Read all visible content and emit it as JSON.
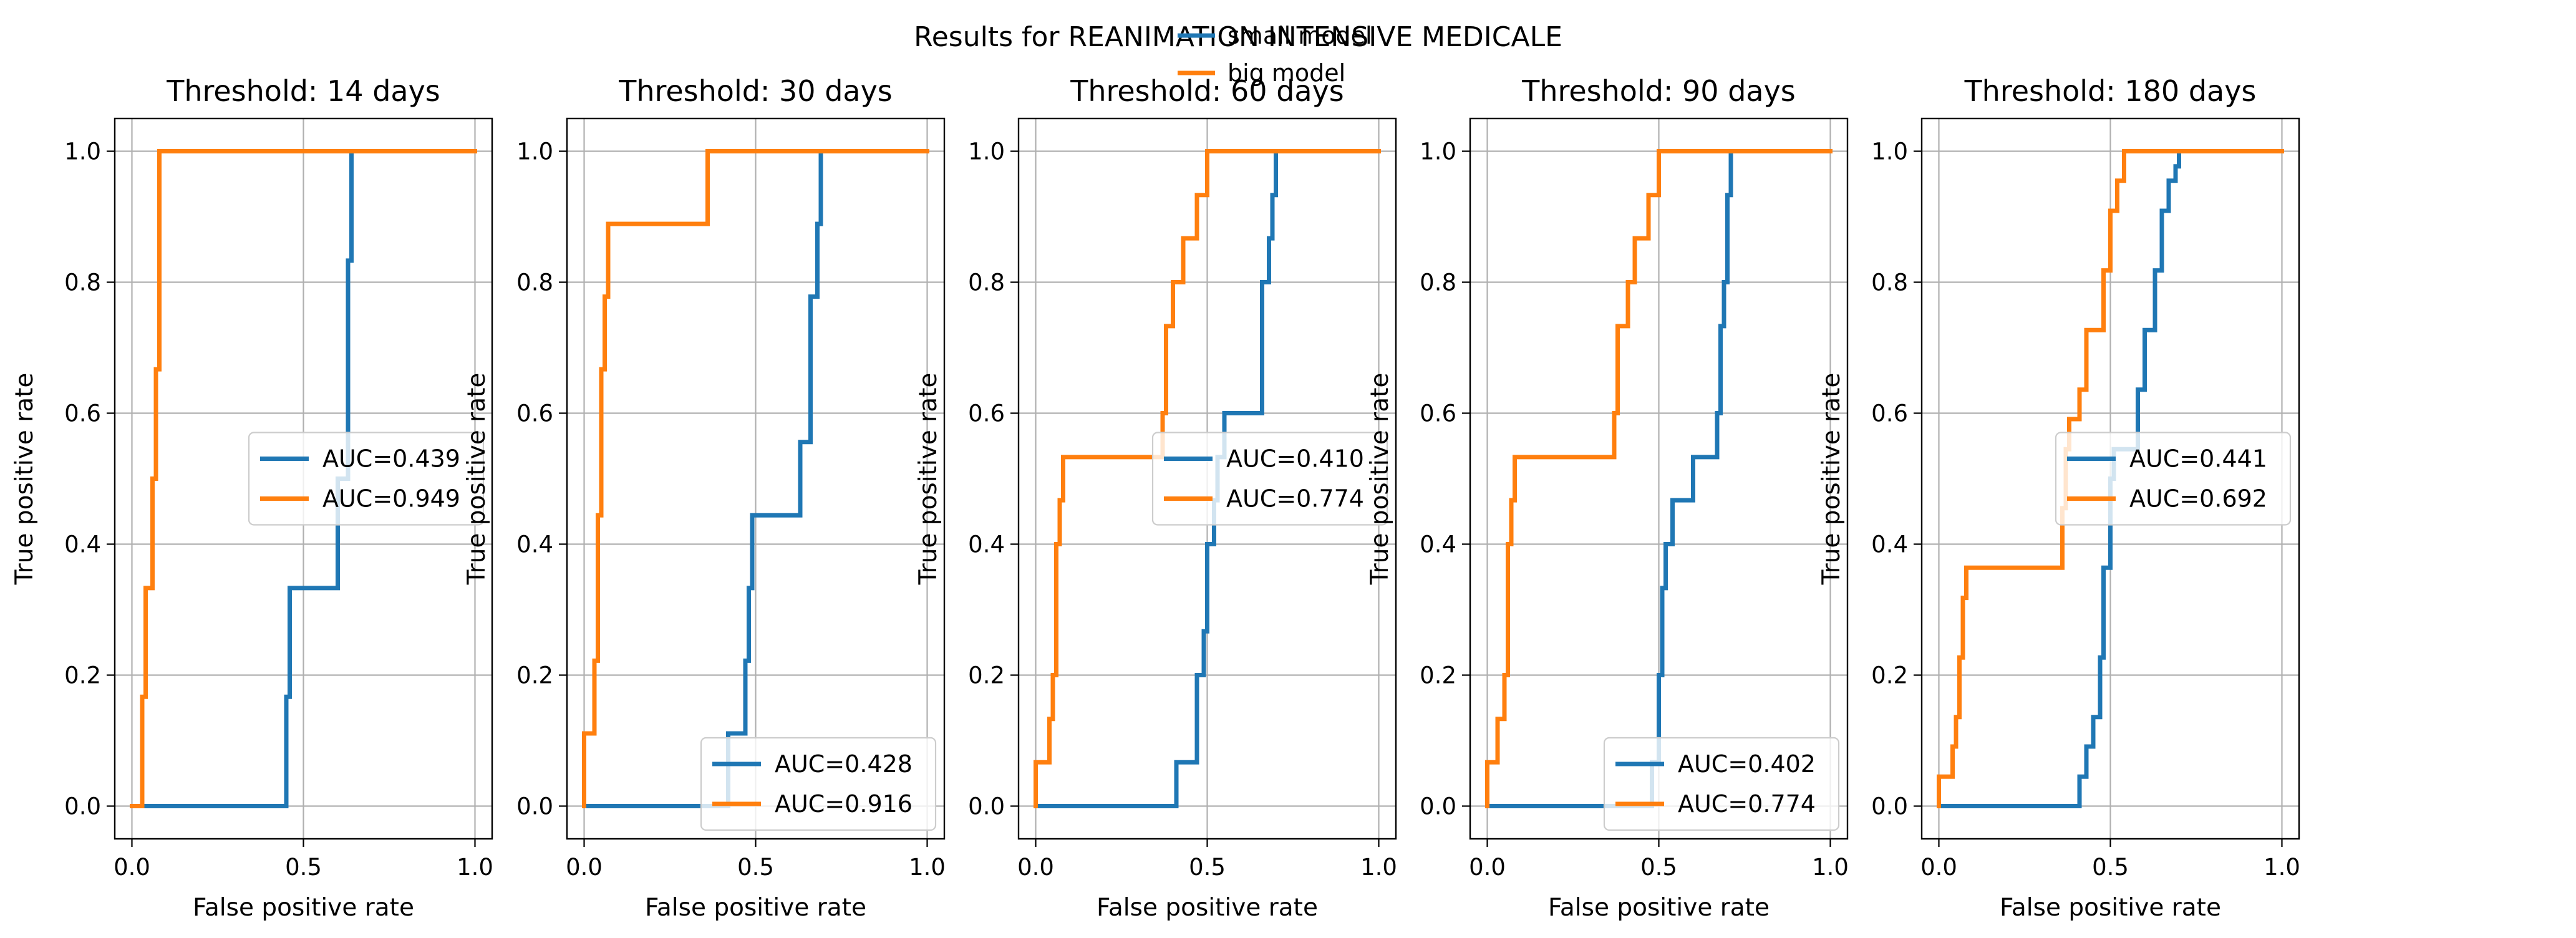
{
  "figure": {
    "suptitle": "Results for REANIMATION INTENSIVE MEDICALE",
    "legend": {
      "placement": "top-right",
      "entries": [
        {
          "label": "small model",
          "color": "#1f77b4"
        },
        {
          "label": "big model",
          "color": "#ff7f0e"
        }
      ]
    }
  },
  "chart_data": [
    {
      "type": "line",
      "title": "Threshold: 14 days",
      "xlabel": "False positive rate",
      "ylabel": "True positive rate",
      "xlim": [
        -0.05,
        1.05
      ],
      "ylim": [
        -0.05,
        1.05
      ],
      "xticks": [
        0.0,
        0.5,
        1.0
      ],
      "xtick_labels": [
        "0.0",
        "0.5",
        "1.0"
      ],
      "yticks": [
        0.0,
        0.2,
        0.4,
        0.6,
        0.8,
        1.0
      ],
      "ytick_labels": [
        "0.0",
        "0.2",
        "0.4",
        "0.6",
        "0.8",
        "1.0"
      ],
      "grid": true,
      "legend_placement": "center-right",
      "series": [
        {
          "color": "#1f77b4",
          "auc_label": "AUC=0.439",
          "x": [
            0.0,
            0.45,
            0.45,
            0.46,
            0.46,
            0.6,
            0.6,
            0.63,
            0.63,
            0.63,
            0.64,
            0.64,
            1.0
          ],
          "y": [
            0.0,
            0.0,
            0.167,
            0.167,
            0.333,
            0.333,
            0.5,
            0.5,
            0.667,
            0.833,
            0.833,
            1.0,
            1.0
          ]
        },
        {
          "color": "#ff7f0e",
          "auc_label": "AUC=0.949",
          "x": [
            0.0,
            0.03,
            0.03,
            0.04,
            0.04,
            0.06,
            0.06,
            0.07,
            0.07,
            0.08,
            0.08,
            0.08,
            1.0
          ],
          "y": [
            0.0,
            0.0,
            0.167,
            0.167,
            0.333,
            0.333,
            0.5,
            0.5,
            0.667,
            0.667,
            0.833,
            1.0,
            1.0
          ]
        }
      ]
    },
    {
      "type": "line",
      "title": "Threshold: 30 days",
      "xlabel": "False positive rate",
      "ylabel": "True positive rate",
      "xlim": [
        -0.05,
        1.05
      ],
      "ylim": [
        -0.05,
        1.05
      ],
      "xticks": [
        0.0,
        0.5,
        1.0
      ],
      "xtick_labels": [
        "0.0",
        "0.5",
        "1.0"
      ],
      "yticks": [
        0.0,
        0.2,
        0.4,
        0.6,
        0.8,
        1.0
      ],
      "ytick_labels": [
        "0.0",
        "0.2",
        "0.4",
        "0.6",
        "0.8",
        "1.0"
      ],
      "grid": true,
      "legend_placement": "lower-right",
      "series": [
        {
          "color": "#1f77b4",
          "auc_label": "AUC=0.428",
          "x": [
            0.0,
            0.42,
            0.42,
            0.47,
            0.47,
            0.48,
            0.48,
            0.49,
            0.49,
            0.5,
            0.5,
            0.63,
            0.63,
            0.66,
            0.66,
            0.68,
            0.68,
            0.69,
            0.69,
            1.0
          ],
          "y": [
            0.0,
            0.0,
            0.111,
            0.111,
            0.222,
            0.222,
            0.333,
            0.333,
            0.444,
            0.444,
            0.444,
            0.444,
            0.556,
            0.556,
            0.778,
            0.778,
            0.889,
            0.889,
            1.0,
            1.0
          ]
        },
        {
          "color": "#ff7f0e",
          "auc_label": "AUC=0.916",
          "x": [
            0.0,
            0.0,
            0.03,
            0.03,
            0.04,
            0.04,
            0.05,
            0.05,
            0.06,
            0.06,
            0.07,
            0.07,
            0.36,
            0.36,
            1.0
          ],
          "y": [
            0.0,
            0.111,
            0.111,
            0.222,
            0.222,
            0.444,
            0.444,
            0.667,
            0.667,
            0.778,
            0.778,
            0.889,
            0.889,
            1.0,
            1.0
          ]
        }
      ]
    },
    {
      "type": "line",
      "title": "Threshold: 60 days",
      "xlabel": "False positive rate",
      "ylabel": "True positive rate",
      "xlim": [
        -0.05,
        1.05
      ],
      "ylim": [
        -0.05,
        1.05
      ],
      "xticks": [
        0.0,
        0.5,
        1.0
      ],
      "xtick_labels": [
        "0.0",
        "0.5",
        "1.0"
      ],
      "yticks": [
        0.0,
        0.2,
        0.4,
        0.6,
        0.8,
        1.0
      ],
      "ytick_labels": [
        "0.0",
        "0.2",
        "0.4",
        "0.6",
        "0.8",
        "1.0"
      ],
      "grid": true,
      "legend_placement": "center-right",
      "series": [
        {
          "color": "#1f77b4",
          "auc_label": "AUC=0.410",
          "x": [
            0.0,
            0.41,
            0.41,
            0.47,
            0.47,
            0.49,
            0.49,
            0.5,
            0.5,
            0.52,
            0.52,
            0.53,
            0.53,
            0.55,
            0.55,
            0.66,
            0.66,
            0.68,
            0.68,
            0.69,
            0.69,
            0.7,
            0.7,
            1.0
          ],
          "y": [
            0.0,
            0.0,
            0.067,
            0.067,
            0.2,
            0.2,
            0.267,
            0.267,
            0.4,
            0.4,
            0.467,
            0.467,
            0.533,
            0.533,
            0.6,
            0.6,
            0.8,
            0.8,
            0.867,
            0.867,
            0.933,
            0.933,
            1.0,
            1.0
          ]
        },
        {
          "color": "#ff7f0e",
          "auc_label": "AUC=0.774",
          "x": [
            0.0,
            0.0,
            0.04,
            0.04,
            0.05,
            0.05,
            0.06,
            0.06,
            0.07,
            0.07,
            0.08,
            0.08,
            0.37,
            0.37,
            0.38,
            0.38,
            0.4,
            0.4,
            0.43,
            0.43,
            0.47,
            0.47,
            0.5,
            0.5,
            1.0
          ],
          "y": [
            0.0,
            0.067,
            0.067,
            0.133,
            0.133,
            0.2,
            0.2,
            0.4,
            0.4,
            0.467,
            0.467,
            0.533,
            0.533,
            0.6,
            0.6,
            0.733,
            0.733,
            0.8,
            0.8,
            0.867,
            0.867,
            0.933,
            0.933,
            1.0,
            1.0
          ]
        }
      ]
    },
    {
      "type": "line",
      "title": "Threshold: 90 days",
      "xlabel": "False positive rate",
      "ylabel": "True positive rate",
      "xlim": [
        -0.05,
        1.05
      ],
      "ylim": [
        -0.05,
        1.05
      ],
      "xticks": [
        0.0,
        0.5,
        1.0
      ],
      "xtick_labels": [
        "0.0",
        "0.5",
        "1.0"
      ],
      "yticks": [
        0.0,
        0.2,
        0.4,
        0.6,
        0.8,
        1.0
      ],
      "ytick_labels": [
        "0.0",
        "0.2",
        "0.4",
        "0.6",
        "0.8",
        "1.0"
      ],
      "grid": true,
      "legend_placement": "lower-right",
      "series": [
        {
          "color": "#1f77b4",
          "auc_label": "AUC=0.402",
          "x": [
            0.0,
            0.48,
            0.48,
            0.5,
            0.5,
            0.51,
            0.51,
            0.52,
            0.52,
            0.54,
            0.54,
            0.6,
            0.6,
            0.67,
            0.67,
            0.68,
            0.68,
            0.69,
            0.69,
            0.7,
            0.7,
            0.71,
            0.71,
            1.0
          ],
          "y": [
            0.0,
            0.0,
            0.067,
            0.067,
            0.2,
            0.2,
            0.333,
            0.333,
            0.4,
            0.4,
            0.467,
            0.467,
            0.533,
            0.533,
            0.6,
            0.6,
            0.733,
            0.733,
            0.8,
            0.8,
            0.933,
            0.933,
            1.0,
            1.0
          ]
        },
        {
          "color": "#ff7f0e",
          "auc_label": "AUC=0.774",
          "x": [
            0.0,
            0.0,
            0.03,
            0.03,
            0.05,
            0.05,
            0.06,
            0.06,
            0.07,
            0.07,
            0.08,
            0.08,
            0.37,
            0.37,
            0.38,
            0.38,
            0.41,
            0.41,
            0.43,
            0.43,
            0.47,
            0.47,
            0.5,
            0.5,
            1.0
          ],
          "y": [
            0.0,
            0.067,
            0.067,
            0.133,
            0.133,
            0.2,
            0.2,
            0.4,
            0.4,
            0.467,
            0.467,
            0.533,
            0.533,
            0.6,
            0.6,
            0.733,
            0.733,
            0.8,
            0.8,
            0.867,
            0.867,
            0.933,
            0.933,
            1.0,
            1.0
          ]
        }
      ]
    },
    {
      "type": "line",
      "title": "Threshold: 180 days",
      "xlabel": "False positive rate",
      "ylabel": "True positive rate",
      "xlim": [
        -0.05,
        1.05
      ],
      "ylim": [
        -0.05,
        1.05
      ],
      "xticks": [
        0.0,
        0.5,
        1.0
      ],
      "xtick_labels": [
        "0.0",
        "0.5",
        "1.0"
      ],
      "yticks": [
        0.0,
        0.2,
        0.4,
        0.6,
        0.8,
        1.0
      ],
      "ytick_labels": [
        "0.0",
        "0.2",
        "0.4",
        "0.6",
        "0.8",
        "1.0"
      ],
      "grid": true,
      "legend_placement": "center-right",
      "series": [
        {
          "color": "#1f77b4",
          "auc_label": "AUC=0.441",
          "x": [
            0.0,
            0.41,
            0.41,
            0.43,
            0.43,
            0.45,
            0.45,
            0.47,
            0.47,
            0.48,
            0.48,
            0.5,
            0.5,
            0.51,
            0.51,
            0.58,
            0.58,
            0.6,
            0.6,
            0.63,
            0.63,
            0.65,
            0.65,
            0.67,
            0.67,
            0.69,
            0.69,
            0.7,
            0.7,
            1.0
          ],
          "y": [
            0.0,
            0.0,
            0.045,
            0.045,
            0.091,
            0.091,
            0.136,
            0.136,
            0.227,
            0.227,
            0.364,
            0.364,
            0.5,
            0.5,
            0.545,
            0.545,
            0.636,
            0.636,
            0.727,
            0.727,
            0.818,
            0.818,
            0.909,
            0.909,
            0.955,
            0.955,
            0.977,
            0.977,
            1.0,
            1.0
          ]
        },
        {
          "color": "#ff7f0e",
          "auc_label": "AUC=0.692",
          "x": [
            0.0,
            0.0,
            0.04,
            0.04,
            0.05,
            0.05,
            0.06,
            0.06,
            0.07,
            0.07,
            0.08,
            0.08,
            0.09,
            0.09,
            0.36,
            0.36,
            0.37,
            0.37,
            0.38,
            0.38,
            0.41,
            0.41,
            0.43,
            0.43,
            0.48,
            0.48,
            0.5,
            0.5,
            0.52,
            0.52,
            0.54,
            0.54,
            1.0
          ],
          "y": [
            0.0,
            0.045,
            0.045,
            0.091,
            0.091,
            0.136,
            0.136,
            0.227,
            0.227,
            0.318,
            0.318,
            0.364,
            0.364,
            0.364,
            0.364,
            0.455,
            0.455,
            0.545,
            0.545,
            0.591,
            0.591,
            0.636,
            0.636,
            0.727,
            0.727,
            0.818,
            0.818,
            0.909,
            0.909,
            0.955,
            0.955,
            1.0,
            1.0
          ]
        }
      ]
    }
  ]
}
